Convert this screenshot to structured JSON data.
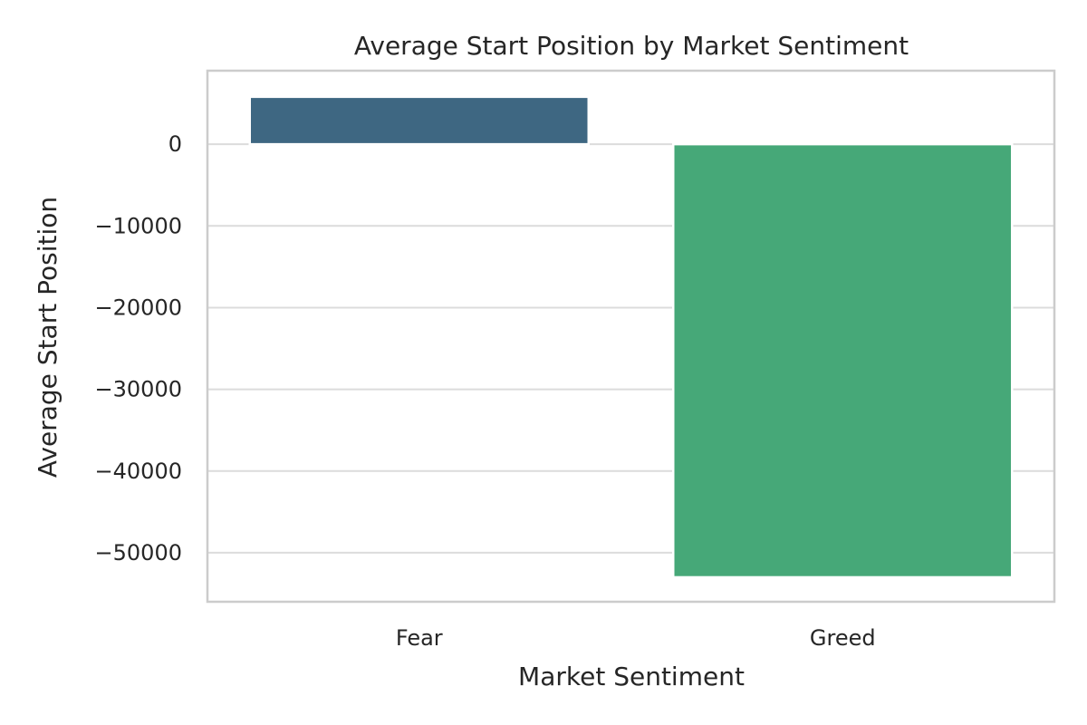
{
  "chart_data": {
    "type": "bar",
    "title": "Average Start Position by Market Sentiment",
    "xlabel": "Market Sentiment",
    "ylabel": "Average Start Position",
    "categories": [
      "Fear",
      "Greed"
    ],
    "values": [
      5800,
      -53000
    ],
    "colors": [
      "#3e6782",
      "#46a878"
    ],
    "ylim": [
      -56000,
      9000
    ],
    "yticks": [
      0,
      -10000,
      -20000,
      -30000,
      -40000,
      -50000
    ],
    "ytick_labels": [
      "0",
      "−10000",
      "−20000",
      "−30000",
      "−40000",
      "−50000"
    ],
    "grid": true,
    "legend": false
  }
}
